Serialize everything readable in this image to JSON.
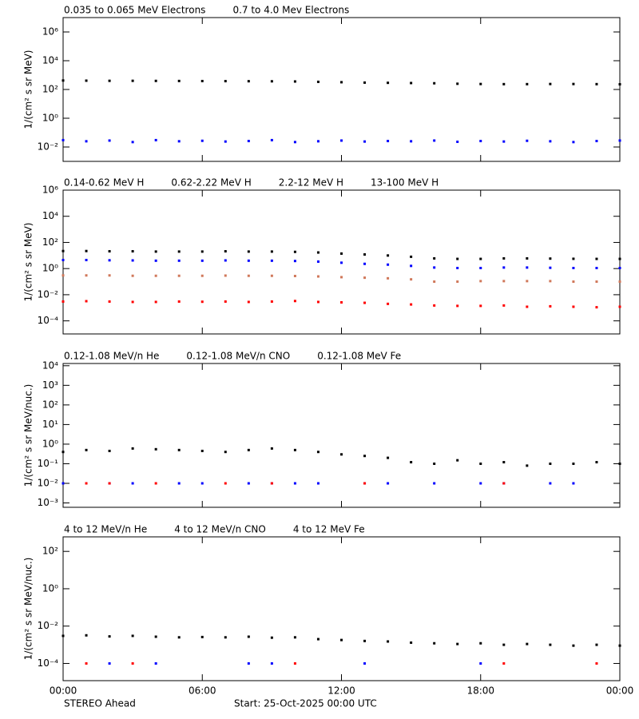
{
  "chart_data": [
    {
      "type": "scatter",
      "y_label": "1/(cm² s sr MeV)",
      "log_y": true,
      "x": [
        0,
        1,
        2,
        3,
        4,
        5,
        6,
        7,
        8,
        9,
        10,
        11,
        12,
        13,
        14,
        15,
        16,
        17,
        18,
        19,
        20,
        21,
        22,
        23,
        24
      ],
      "xlim": [
        0,
        24
      ],
      "xticks": [
        0,
        6,
        12,
        18,
        24
      ],
      "ylim": [
        0.001,
        10000000
      ],
      "yticks": [
        {
          "value": 0.01,
          "label": "10⁻²"
        },
        {
          "value": 1,
          "label": "10⁰"
        },
        {
          "value": 100,
          "label": "10²"
        },
        {
          "value": 10000,
          "label": "10⁴"
        },
        {
          "value": 1000000,
          "label": "10⁶"
        }
      ],
      "series": [
        {
          "name": "0.035 to 0.065 MeV Electrons",
          "color": "#000000",
          "values": [
            420,
            410,
            400,
            400,
            395,
            390,
            385,
            380,
            375,
            370,
            360,
            340,
            320,
            300,
            290,
            280,
            270,
            250,
            240,
            235,
            235,
            240,
            240,
            235,
            230
          ]
        },
        {
          "name": "0.7 to 4.0 Mev Electrons",
          "color": "#0000ff",
          "values": [
            0.03,
            0.025,
            0.028,
            0.022,
            0.03,
            0.025,
            0.027,
            0.024,
            0.026,
            0.03,
            0.022,
            0.025,
            0.028,
            0.024,
            0.026,
            0.025,
            0.028,
            0.023,
            0.026,
            0.024,
            0.027,
            0.025,
            0.022,
            0.026,
            0.028
          ]
        }
      ]
    },
    {
      "type": "scatter",
      "y_label": "1/(cm² s sr MeV)",
      "log_y": true,
      "x": [
        0,
        1,
        2,
        3,
        4,
        5,
        6,
        7,
        8,
        9,
        10,
        11,
        12,
        13,
        14,
        15,
        16,
        17,
        18,
        19,
        20,
        21,
        22,
        23,
        24
      ],
      "xlim": [
        0,
        24
      ],
      "xticks": [
        0,
        6,
        12,
        18,
        24
      ],
      "ylim": [
        1e-05,
        1000000
      ],
      "yticks": [
        {
          "value": 0.0001,
          "label": "10⁻⁴"
        },
        {
          "value": 0.01,
          "label": "10⁻²"
        },
        {
          "value": 1,
          "label": "10⁰"
        },
        {
          "value": 100,
          "label": "10²"
        },
        {
          "value": 10000,
          "label": "10⁴"
        },
        {
          "value": 1000000,
          "label": "10⁶"
        }
      ],
      "series": [
        {
          "name": "0.14-0.62 MeV H",
          "color": "#000000",
          "values": [
            22,
            22,
            21,
            21,
            20,
            20,
            20,
            21,
            20,
            20,
            19,
            17,
            14,
            12,
            10,
            8,
            6,
            5.5,
            5.5,
            6,
            6,
            5.8,
            5.6,
            5.5,
            5.5
          ]
        },
        {
          "name": "0.62-2.22 MeV H",
          "color": "#0000ff",
          "values": [
            4.5,
            4.5,
            4.3,
            4.2,
            4,
            4,
            4,
            4.2,
            4,
            4,
            3.8,
            3.4,
            2.8,
            2.3,
            2,
            1.6,
            1.2,
            1.1,
            1.1,
            1.2,
            1.2,
            1.15,
            1.1,
            1.1,
            1.1
          ]
        },
        {
          "name": "2.2-12 MeV H",
          "color": "#d0785a",
          "values": [
            0.3,
            0.3,
            0.3,
            0.28,
            0.28,
            0.28,
            0.28,
            0.29,
            0.28,
            0.28,
            0.27,
            0.25,
            0.22,
            0.2,
            0.18,
            0.15,
            0.1,
            0.1,
            0.11,
            0.11,
            0.11,
            0.11,
            0.1,
            0.1,
            0.1
          ]
        },
        {
          "name": "13-100 MeV H",
          "color": "#ff0000",
          "values": [
            0.003,
            0.0032,
            0.003,
            0.0028,
            0.0028,
            0.003,
            0.0029,
            0.003,
            0.0028,
            0.003,
            0.0033,
            0.0028,
            0.0026,
            0.0024,
            0.002,
            0.0018,
            0.0015,
            0.0014,
            0.0014,
            0.0015,
            0.0012,
            0.0013,
            0.0012,
            0.0011,
            0.0012
          ]
        }
      ]
    },
    {
      "type": "scatter",
      "y_label": "1/(cm² s sr MeV/nuc.)",
      "log_y": true,
      "x": [
        0,
        1,
        2,
        3,
        4,
        5,
        6,
        7,
        8,
        9,
        10,
        11,
        12,
        13,
        14,
        15,
        16,
        17,
        18,
        19,
        20,
        21,
        22,
        23,
        24
      ],
      "xlim": [
        0,
        24
      ],
      "xticks": [
        0,
        6,
        12,
        18,
        24
      ],
      "ylim": [
        0.0006,
        13000
      ],
      "yticks": [
        {
          "value": 0.001,
          "label": "10⁻³"
        },
        {
          "value": 0.01,
          "label": "10⁻²"
        },
        {
          "value": 0.1,
          "label": "10⁻¹"
        },
        {
          "value": 1,
          "label": "10⁰"
        },
        {
          "value": 10,
          "label": "10¹"
        },
        {
          "value": 100,
          "label": "10²"
        },
        {
          "value": 1000,
          "label": "10³"
        },
        {
          "value": 10000,
          "label": "10⁴"
        }
      ],
      "series": [
        {
          "name": "0.12-1.08 MeV/n He",
          "color": "#000000",
          "values": [
            0.4,
            0.5,
            0.45,
            0.6,
            0.55,
            0.5,
            0.45,
            0.4,
            0.5,
            0.6,
            0.5,
            0.4,
            0.3,
            0.25,
            0.2,
            0.12,
            0.1,
            0.15,
            0.1,
            0.12,
            0.08,
            0.1,
            0.1,
            0.12,
            0.1
          ]
        },
        {
          "name": "0.12-1.08 MeV/n CNO",
          "color": "#0000ff",
          "values": [
            0.01,
            null,
            0.01,
            0.01,
            null,
            0.01,
            0.01,
            null,
            0.01,
            0.01,
            0.01,
            0.01,
            null,
            0.01,
            0.01,
            null,
            0.01,
            null,
            0.01,
            0.01,
            null,
            0.01,
            0.01,
            null,
            null
          ]
        },
        {
          "name": "0.12-1.08 MeV Fe",
          "color": "#ff0000",
          "values": [
            null,
            0.01,
            0.01,
            null,
            0.01,
            null,
            null,
            0.01,
            null,
            0.01,
            null,
            null,
            null,
            0.01,
            null,
            null,
            null,
            null,
            null,
            0.01,
            null,
            null,
            null,
            null,
            null
          ]
        }
      ]
    },
    {
      "type": "scatter",
      "y_label": "1/(cm² s sr MeV/nuc.)",
      "log_y": true,
      "x": [
        0,
        1,
        2,
        3,
        4,
        5,
        6,
        7,
        8,
        9,
        10,
        11,
        12,
        13,
        14,
        15,
        16,
        17,
        18,
        19,
        20,
        21,
        22,
        23,
        24
      ],
      "xlim": [
        0,
        24
      ],
      "xticks": [
        {
          "value": 0,
          "label": "00:00"
        },
        {
          "value": 6,
          "label": "06:00"
        },
        {
          "value": 12,
          "label": "12:00"
        },
        {
          "value": 18,
          "label": "18:00"
        },
        {
          "value": 24,
          "label": "00:00"
        }
      ],
      "ylim": [
        1.2e-05,
        600
      ],
      "yticks": [
        {
          "value": 0.0001,
          "label": "10⁻⁴"
        },
        {
          "value": 0.01,
          "label": "10⁻²"
        },
        {
          "value": 1,
          "label": "10⁰"
        },
        {
          "value": 100,
          "label": "10²"
        }
      ],
      "series": [
        {
          "name": "4 to 12 MeV/n He",
          "color": "#000000",
          "values": [
            0.003,
            0.0032,
            0.0028,
            0.003,
            0.0027,
            0.0025,
            0.0026,
            0.0025,
            0.0027,
            0.0024,
            0.0025,
            0.002,
            0.0018,
            0.0016,
            0.0015,
            0.0013,
            0.0012,
            0.0011,
            0.0012,
            0.001,
            0.0011,
            0.001,
            0.0009,
            0.001,
            0.0009
          ]
        },
        {
          "name": "4 to 12 MeV/n CNO",
          "color": "#0000ff",
          "values": [
            null,
            null,
            0.0001,
            null,
            0.0001,
            null,
            null,
            null,
            0.0001,
            0.0001,
            null,
            null,
            null,
            0.0001,
            null,
            null,
            null,
            null,
            0.0001,
            null,
            null,
            null,
            null,
            null,
            null
          ]
        },
        {
          "name": "4 to 12 MeV Fe",
          "color": "#ff0000",
          "values": [
            null,
            0.0001,
            null,
            0.0001,
            null,
            null,
            null,
            null,
            null,
            null,
            0.0001,
            null,
            null,
            null,
            null,
            null,
            null,
            null,
            null,
            0.0001,
            null,
            null,
            null,
            0.0001,
            null
          ]
        }
      ]
    }
  ],
  "footer": {
    "left": "STEREO Ahead",
    "right": "Start: 25-Oct-2025 00:00 UTC"
  }
}
